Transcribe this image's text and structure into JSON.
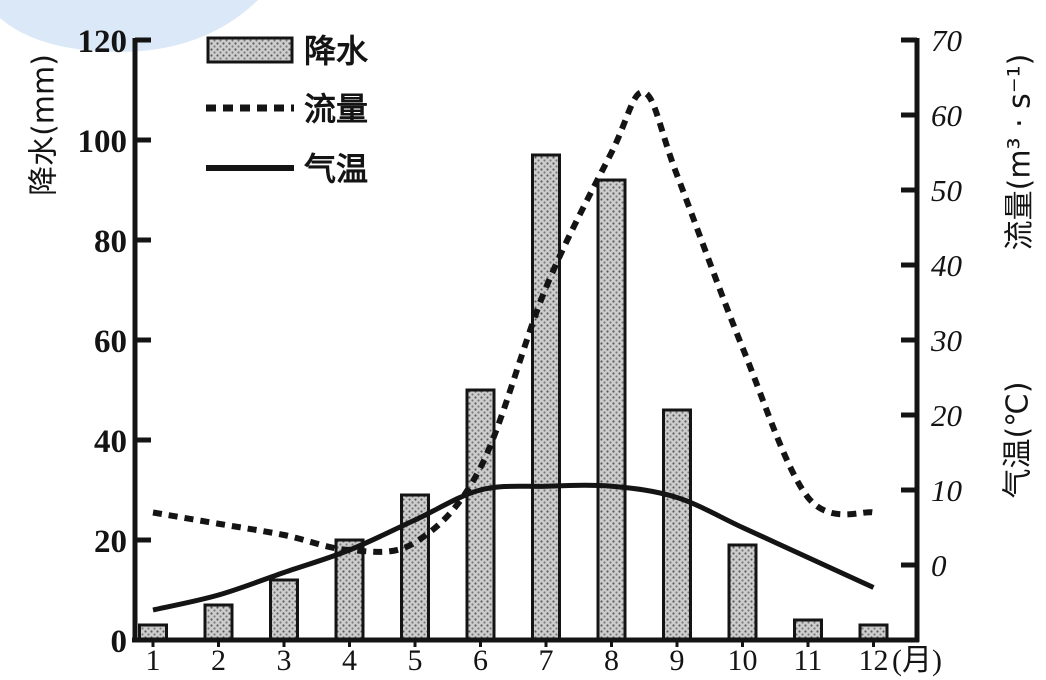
{
  "chart_data": {
    "type": "bar",
    "categories": [
      "1",
      "2",
      "3",
      "4",
      "5",
      "6",
      "7",
      "8",
      "9",
      "10",
      "11",
      "12"
    ],
    "x_unit": "(月)",
    "left_axis": {
      "label": "降水(mm)",
      "ylim": [
        0,
        120
      ],
      "ticks": [
        0,
        20,
        40,
        60,
        80,
        100,
        120
      ]
    },
    "right_axis": {
      "flow_label": "流量(m³ · s⁻¹)",
      "temp_label": "气温(℃)",
      "ylim": [
        -10,
        70
      ],
      "ticks": [
        0,
        10,
        20,
        30,
        40,
        50,
        60,
        70
      ]
    },
    "series": [
      {
        "name": "降水",
        "type": "bar",
        "axis": "left",
        "values": [
          3,
          7,
          12,
          20,
          29,
          50,
          97,
          92,
          46,
          19,
          4,
          3
        ]
      },
      {
        "name": "流量",
        "type": "line",
        "style": "dashed",
        "axis": "right",
        "x": [
          1,
          2,
          3,
          4,
          5,
          6,
          7,
          8,
          8.5,
          9,
          10,
          11,
          12
        ],
        "values": [
          7,
          5.5,
          4,
          2,
          3,
          13,
          37,
          55,
          63,
          52,
          29,
          9,
          7
        ]
      },
      {
        "name": "气温",
        "type": "line",
        "style": "solid",
        "axis": "right",
        "x": [
          1,
          2,
          3,
          4,
          5,
          6,
          7,
          8,
          9,
          10,
          11,
          12
        ],
        "values": [
          -6,
          -4,
          -1,
          2,
          6,
          10,
          10.5,
          10.5,
          9,
          5,
          1,
          -3
        ]
      }
    ],
    "grid": false,
    "legend": "top-left",
    "colors": {
      "ink": "#141414",
      "bar_fill": "#cdcdcd",
      "watermark": "#dae8f7"
    }
  }
}
